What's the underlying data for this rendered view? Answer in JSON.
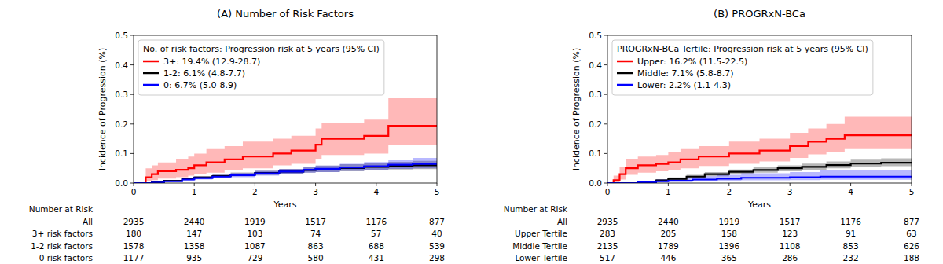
{
  "chart_data": [
    {
      "type": "line",
      "line_style": "step",
      "title": "(A) Number of Risk Factors",
      "x_label": "Years",
      "y_label": "Incidence of Progression (%)",
      "legend": "upper left",
      "legend_title": "No. of risk factors: Progression risk at 5 years (95% CI)",
      "xlim": [
        0,
        5
      ],
      "ylim": [
        0,
        0.5
      ],
      "xticks": [
        0,
        1,
        2,
        3,
        4,
        5
      ],
      "yticks": [
        {
          "value": 0,
          "label": "0.0"
        },
        0.1,
        0.2,
        0.3,
        0.4,
        0.5
      ],
      "series": [
        {
          "name": "3+: 19.4% (12.9-28.7)",
          "color": "#ff0000",
          "x": [
            0,
            0.2,
            0.3,
            0.4,
            0.7,
            0.9,
            1.0,
            1.2,
            1.5,
            1.8,
            2.3,
            2.6,
            3.0,
            3.1,
            3.8,
            4.2,
            5
          ],
          "values": [
            0,
            0.02,
            0.03,
            0.04,
            0.045,
            0.05,
            0.06,
            0.07,
            0.08,
            0.09,
            0.1,
            0.11,
            0.13,
            0.15,
            0.16,
            0.194,
            0.194
          ],
          "lower": [
            0,
            0.005,
            0.01,
            0.015,
            0.02,
            0.025,
            0.03,
            0.035,
            0.045,
            0.05,
            0.06,
            0.065,
            0.08,
            0.095,
            0.1,
            0.129,
            0.129
          ],
          "upper": [
            0,
            0.05,
            0.06,
            0.07,
            0.08,
            0.09,
            0.1,
            0.115,
            0.125,
            0.14,
            0.15,
            0.16,
            0.185,
            0.205,
            0.215,
            0.287,
            0.287
          ]
        },
        {
          "name": "1-2: 6.1% (4.8-7.7)",
          "color": "#000000",
          "x": [
            0,
            0.3,
            0.5,
            0.8,
            1.0,
            1.3,
            1.6,
            2.0,
            2.4,
            2.8,
            3.0,
            3.4,
            3.8,
            4.2,
            4.6,
            5
          ],
          "values": [
            0,
            0.003,
            0.008,
            0.014,
            0.019,
            0.024,
            0.029,
            0.034,
            0.039,
            0.044,
            0.047,
            0.051,
            0.055,
            0.058,
            0.06,
            0.061
          ],
          "lower": [
            0,
            0.002,
            0.006,
            0.011,
            0.015,
            0.019,
            0.023,
            0.027,
            0.031,
            0.035,
            0.037,
            0.04,
            0.043,
            0.046,
            0.047,
            0.048
          ],
          "upper": [
            0,
            0.004,
            0.01,
            0.018,
            0.024,
            0.03,
            0.036,
            0.042,
            0.048,
            0.055,
            0.059,
            0.064,
            0.069,
            0.072,
            0.075,
            0.077
          ]
        },
        {
          "name": "0: 6.7% (5.0-8.9)",
          "color": "#0000ff",
          "x": [
            0,
            0.3,
            0.5,
            0.8,
            1.0,
            1.3,
            1.6,
            2.0,
            2.4,
            2.8,
            3.0,
            3.4,
            3.8,
            4.2,
            4.6,
            5
          ],
          "values": [
            0,
            0.002,
            0.006,
            0.012,
            0.017,
            0.022,
            0.027,
            0.033,
            0.039,
            0.045,
            0.048,
            0.053,
            0.057,
            0.062,
            0.065,
            0.067
          ],
          "lower": [
            0,
            0.001,
            0.004,
            0.008,
            0.012,
            0.016,
            0.02,
            0.025,
            0.03,
            0.035,
            0.037,
            0.041,
            0.044,
            0.048,
            0.05,
            0.05
          ],
          "upper": [
            0,
            0.004,
            0.009,
            0.016,
            0.022,
            0.028,
            0.034,
            0.041,
            0.048,
            0.055,
            0.059,
            0.065,
            0.071,
            0.077,
            0.085,
            0.089
          ]
        }
      ],
      "risk_table": {
        "title": "Number at Risk",
        "x": [
          0,
          1,
          2,
          3,
          4,
          5
        ],
        "rows": [
          {
            "name": "All",
            "values": [
              2935,
              2440,
              1919,
              1517,
              1176,
              877
            ]
          },
          {
            "name": "3+ risk factors",
            "values": [
              180,
              147,
              103,
              74,
              57,
              40
            ]
          },
          {
            "name": "1-2 risk factors",
            "values": [
              1578,
              1358,
              1087,
              863,
              688,
              539
            ]
          },
          {
            "name": "0 risk factors",
            "values": [
              1177,
              935,
              729,
              580,
              431,
              298
            ]
          }
        ]
      }
    },
    {
      "type": "line",
      "line_style": "step",
      "title": "(B) PROGRxN-BCa",
      "x_label": "Years",
      "y_label": "Incidence of Progression (%)",
      "legend": "upper left",
      "legend_title": "PROGRxN-BCa Tertile: Progression risk at 5 years (95% CI)",
      "xlim": [
        0,
        5
      ],
      "ylim": [
        0,
        0.5
      ],
      "xticks": [
        0,
        1,
        2,
        3,
        4,
        5
      ],
      "yticks": [
        {
          "value": 0,
          "label": "0.0"
        },
        0.1,
        0.2,
        0.3,
        0.4,
        0.5
      ],
      "series": [
        {
          "name": "Upper: 16.2% (11.5-22.5)",
          "color": "#ff0000",
          "x": [
            0,
            0.1,
            0.2,
            0.3,
            0.5,
            0.8,
            1.0,
            1.2,
            1.5,
            2.0,
            2.5,
            3.0,
            3.3,
            3.6,
            3.9,
            5
          ],
          "values": [
            0,
            0.01,
            0.03,
            0.05,
            0.06,
            0.065,
            0.07,
            0.08,
            0.09,
            0.1,
            0.11,
            0.125,
            0.14,
            0.15,
            0.162,
            0.162
          ],
          "lower": [
            0,
            0.002,
            0.012,
            0.028,
            0.035,
            0.04,
            0.043,
            0.05,
            0.058,
            0.065,
            0.073,
            0.085,
            0.097,
            0.105,
            0.115,
            0.115
          ],
          "upper": [
            0,
            0.025,
            0.055,
            0.08,
            0.09,
            0.095,
            0.105,
            0.115,
            0.125,
            0.14,
            0.15,
            0.17,
            0.185,
            0.2,
            0.225,
            0.225
          ]
        },
        {
          "name": "Middle: 7.1% (5.8-8.7)",
          "color": "#000000",
          "x": [
            0,
            0.5,
            0.8,
            1.0,
            1.3,
            1.6,
            2.0,
            2.4,
            2.8,
            3.2,
            3.6,
            4.0,
            4.5,
            5
          ],
          "values": [
            0,
            0.004,
            0.009,
            0.014,
            0.022,
            0.03,
            0.038,
            0.044,
            0.05,
            0.055,
            0.061,
            0.066,
            0.069,
            0.071
          ],
          "lower": [
            0,
            0.002,
            0.006,
            0.01,
            0.016,
            0.023,
            0.03,
            0.035,
            0.04,
            0.045,
            0.05,
            0.054,
            0.057,
            0.058
          ],
          "upper": [
            0,
            0.007,
            0.013,
            0.019,
            0.028,
            0.037,
            0.046,
            0.053,
            0.06,
            0.066,
            0.073,
            0.079,
            0.084,
            0.087
          ]
        },
        {
          "name": "Lower: 2.2% (1.1-4.3)",
          "color": "#0000ff",
          "x": [
            0,
            0.5,
            0.8,
            1.0,
            1.4,
            1.8,
            2.2,
            3.0,
            3.5,
            5
          ],
          "values": [
            0,
            0.003,
            0.006,
            0.008,
            0.012,
            0.015,
            0.018,
            0.02,
            0.022,
            0.022
          ],
          "lower": [
            0,
            0.001,
            0.002,
            0.003,
            0.005,
            0.007,
            0.009,
            0.01,
            0.011,
            0.011
          ],
          "upper": [
            0,
            0.008,
            0.013,
            0.017,
            0.023,
            0.028,
            0.033,
            0.037,
            0.043,
            0.043
          ]
        }
      ],
      "risk_table": {
        "title": "Number at Risk",
        "x": [
          0,
          1,
          2,
          3,
          4,
          5
        ],
        "rows": [
          {
            "name": "All",
            "values": [
              2935,
              2440,
              1919,
              1517,
              1176,
              877
            ]
          },
          {
            "name": "Upper Tertile",
            "values": [
              283,
              205,
              158,
              123,
              91,
              63
            ]
          },
          {
            "name": "Middle Tertile",
            "values": [
              2135,
              1789,
              1396,
              1108,
              853,
              626
            ]
          },
          {
            "name": "Lower Tertile",
            "values": [
              517,
              446,
              365,
              286,
              232,
              188
            ]
          }
        ]
      }
    }
  ]
}
